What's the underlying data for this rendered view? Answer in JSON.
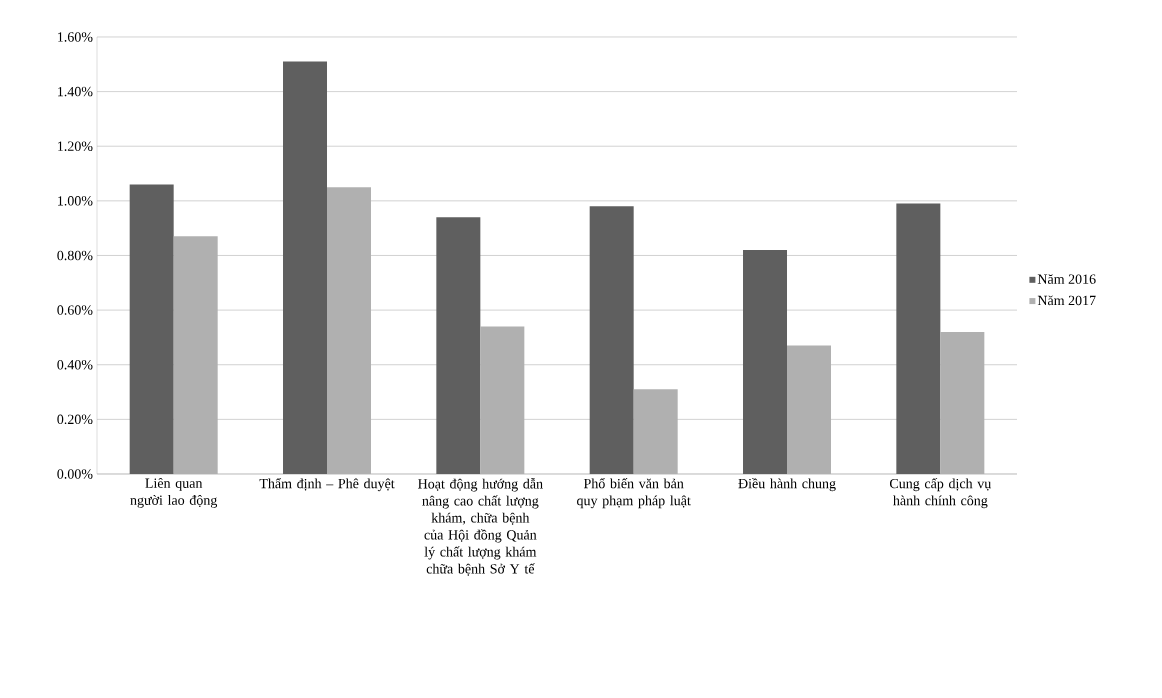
{
  "chart_data": {
    "type": "bar",
    "categories": [
      "Liên quan người lao động",
      "Thẩm định – Phê duyệt",
      "Hoạt động hướng dẫn nâng cao chất lượng khám, chữa bệnh của Hội đồng Quản lý chất lượng khám chữa bệnh Sở Y tế",
      "Phổ biến văn bản quy phạm pháp luật",
      "Điều hành chung",
      "Cung cấp dịch vụ hành chính công"
    ],
    "series": [
      {
        "name": "Năm 2016",
        "color": "#5f5f5f",
        "values": [
          1.06,
          1.51,
          0.94,
          0.98,
          0.82,
          0.99
        ]
      },
      {
        "name": "Năm 2017",
        "color": "#b0b0b0",
        "values": [
          0.87,
          1.05,
          0.54,
          0.31,
          0.47,
          0.52
        ]
      }
    ],
    "ylim": [
      0,
      1.6
    ],
    "yticks": [
      {
        "value": 0,
        "label": "0.00%"
      },
      {
        "value": 0.2,
        "label": "0.20%"
      },
      {
        "value": 0.4,
        "label": "0.40%"
      },
      {
        "value": 0.6,
        "label": "0.60%"
      },
      {
        "value": 0.8,
        "label": "0.80%"
      },
      {
        "value": 1.0,
        "label": "1.00%"
      },
      {
        "value": 1.2,
        "label": "1.20%"
      },
      {
        "value": 1.4,
        "label": "1.40%"
      },
      {
        "value": 1.6,
        "label": "1.60%"
      }
    ],
    "grid": "y",
    "legend": "right"
  }
}
